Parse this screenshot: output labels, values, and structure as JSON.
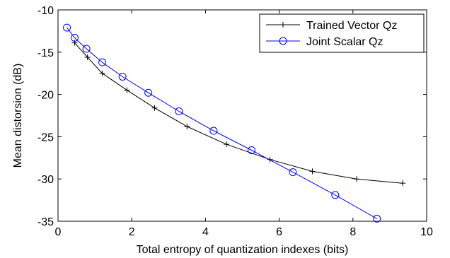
{
  "chart_data": {
    "type": "line",
    "title": "",
    "xlabel": "Total entropy of quantization indexes (bits)",
    "ylabel": "Mean distorsion (dB)",
    "xlim": [
      0,
      10
    ],
    "ylim": [
      -35,
      -10
    ],
    "xticks": [
      "0",
      "2",
      "4",
      "6",
      "8",
      "10"
    ],
    "yticks": [
      "-10",
      "-15",
      "-20",
      "-25",
      "-30",
      "-35"
    ],
    "grid": false,
    "legend_position": "top-right",
    "series": [
      {
        "name": "Trained Vector Qz",
        "color": "#000000",
        "marker": "plus",
        "x": [
          0.45,
          0.8,
          1.2,
          1.87,
          2.62,
          3.5,
          4.57,
          5.75,
          6.9,
          8.1,
          9.35
        ],
        "y": [
          -13.9,
          -15.6,
          -17.5,
          -19.5,
          -21.6,
          -23.8,
          -25.9,
          -27.7,
          -29.1,
          -30.0,
          -30.5
        ]
      },
      {
        "name": "Joint Scalar Qz",
        "color": "#0000ff",
        "marker": "circle",
        "x": [
          0.24,
          0.45,
          0.77,
          1.2,
          1.75,
          2.45,
          3.28,
          4.22,
          5.25,
          6.37,
          7.52,
          8.65
        ],
        "y": [
          -12.1,
          -13.3,
          -14.6,
          -16.2,
          -17.9,
          -19.8,
          -22.0,
          -24.3,
          -26.6,
          -29.2,
          -31.9,
          -34.7
        ]
      }
    ]
  }
}
